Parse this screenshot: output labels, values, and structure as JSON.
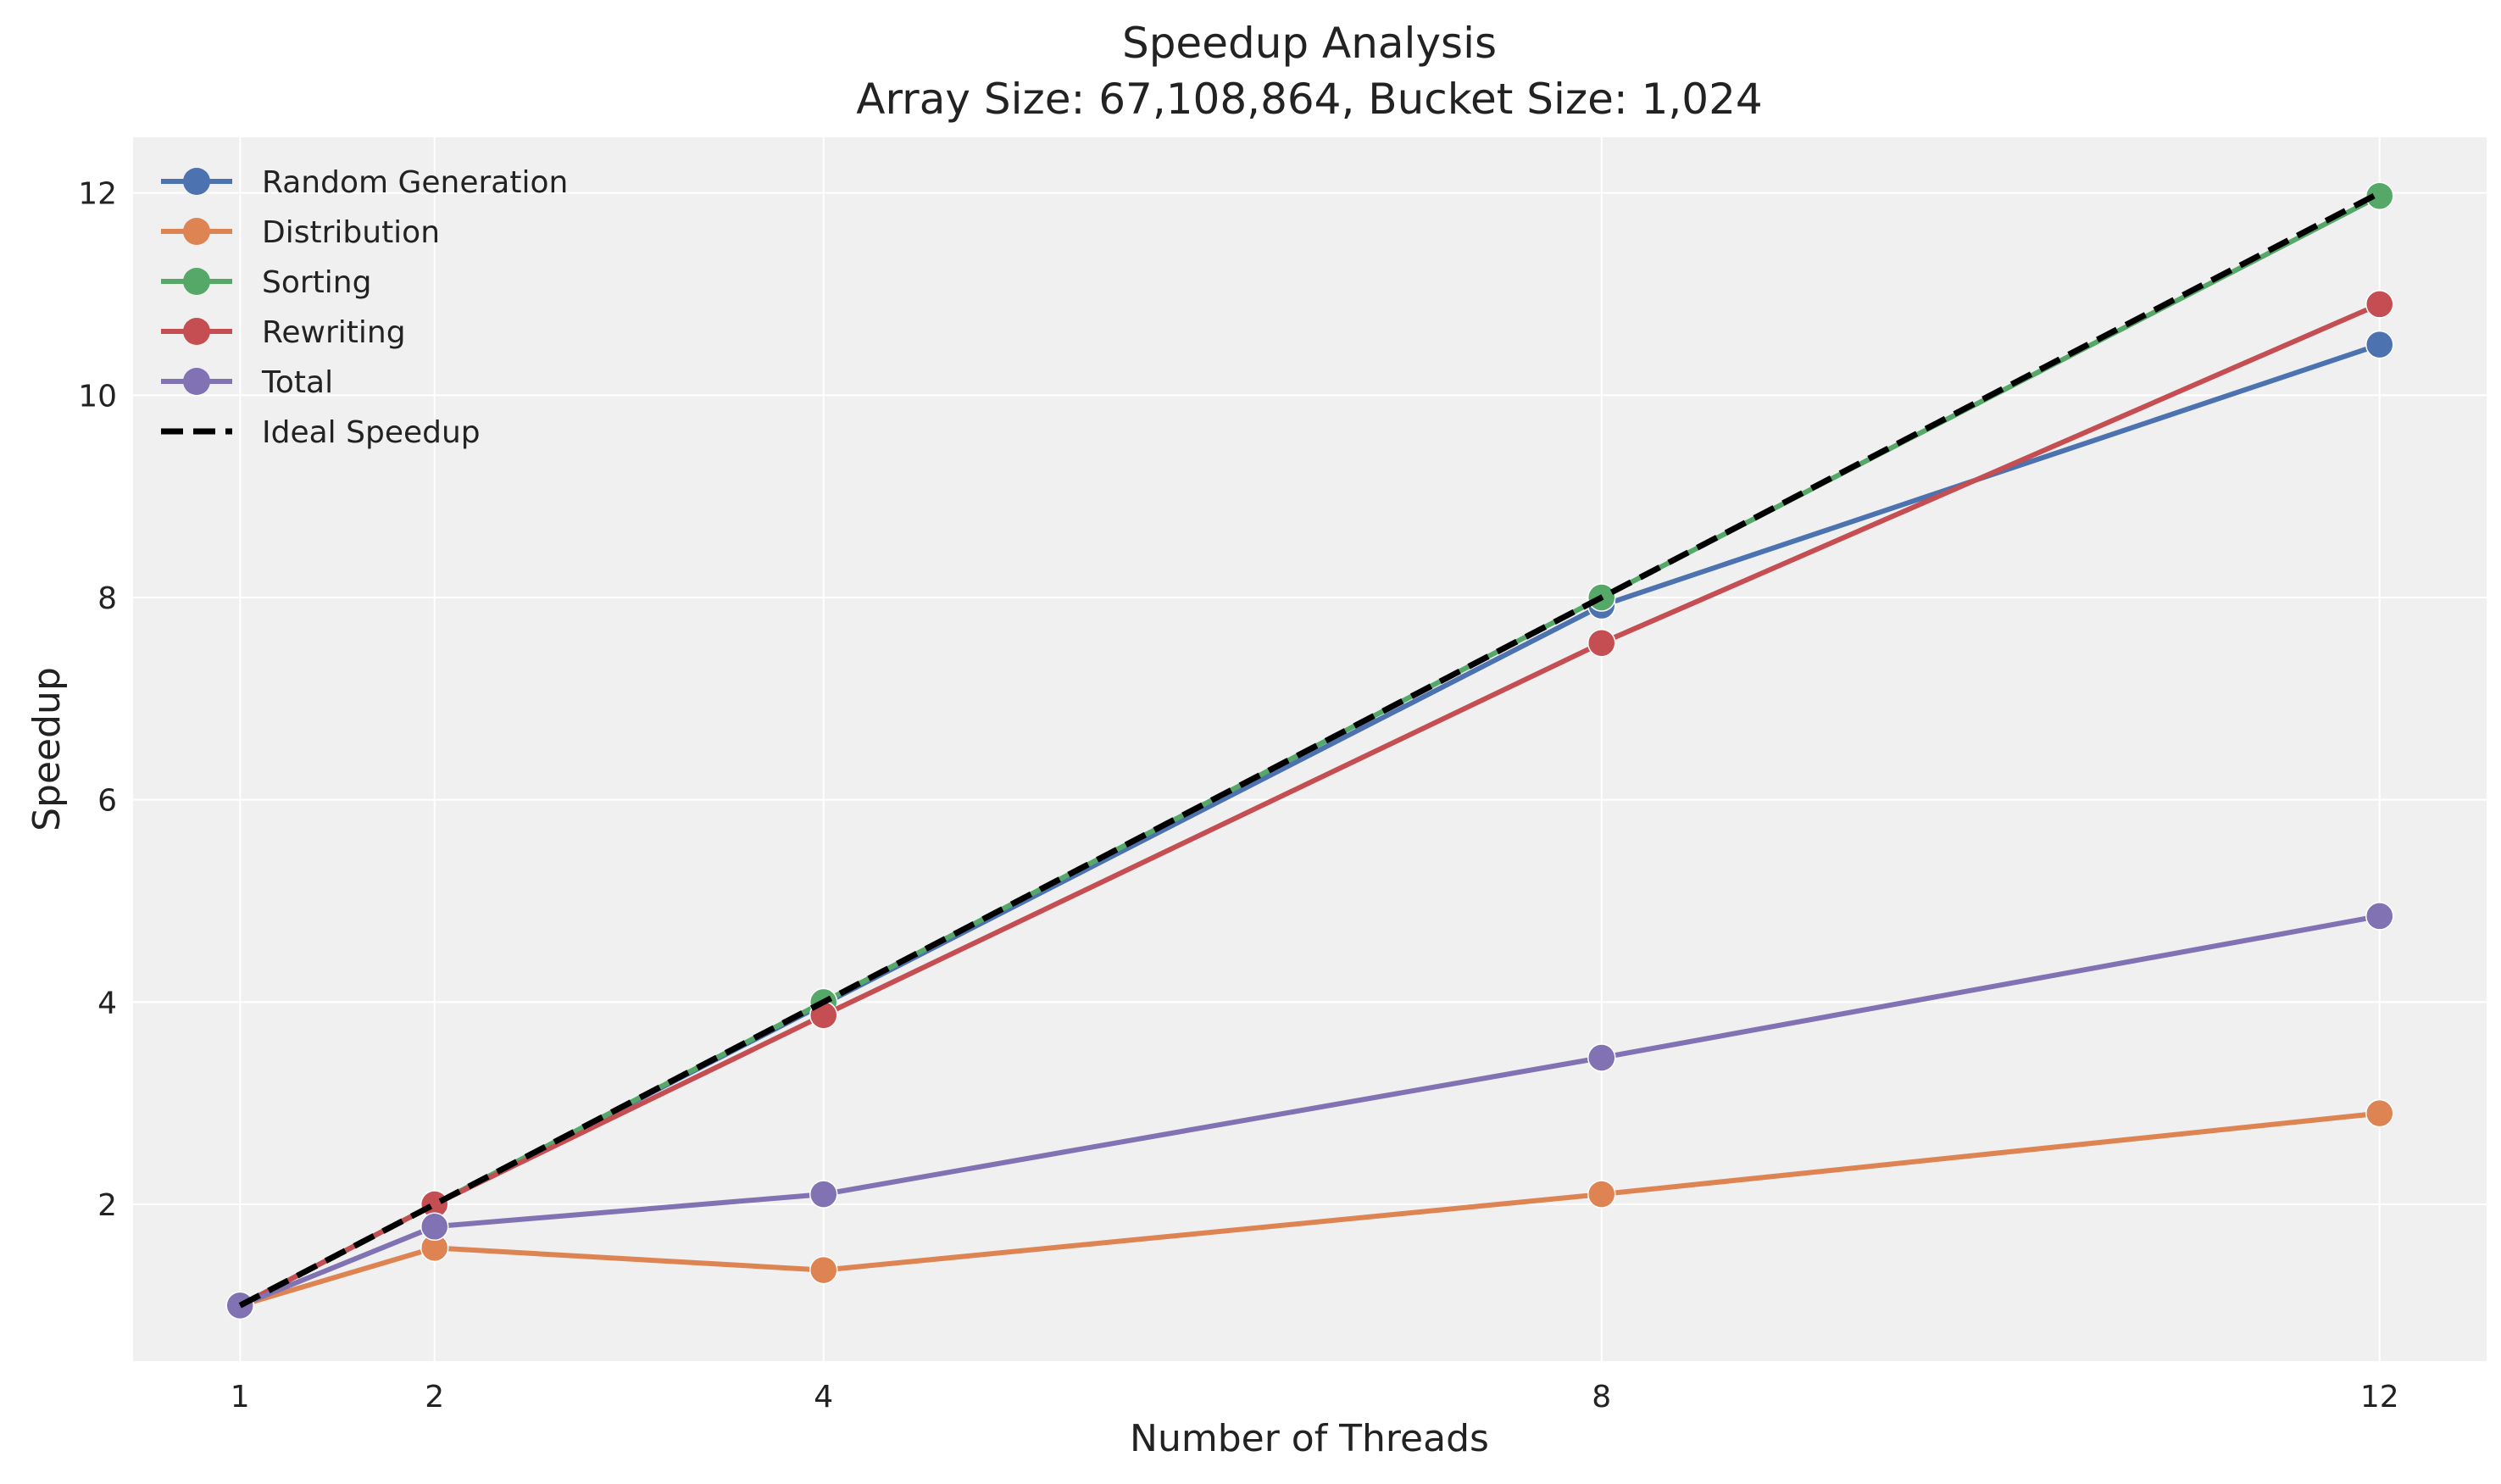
{
  "chart_data": {
    "type": "line",
    "title": "Speedup Analysis",
    "subtitle": "Array Size: 67,108,864, Bucket Size: 1,024",
    "xlabel": "Number of Threads",
    "ylabel": "Speedup",
    "x": [
      1,
      2,
      4,
      8,
      12
    ],
    "x_ticks": [
      "1",
      "2",
      "4",
      "8",
      "12"
    ],
    "y_ticks": [
      "2",
      "4",
      "6",
      "8",
      "10",
      "12"
    ],
    "xlim": [
      0.45,
      12.55
    ],
    "ylim": [
      0.45,
      12.55
    ],
    "grid": true,
    "legend_position": "top-left",
    "background": "#f0f0f0",
    "series": [
      {
        "name": "Random Generation",
        "color": "#4c72b0",
        "style": "solid",
        "marker": "circle",
        "values": [
          1.0,
          2.0,
          3.98,
          7.92,
          10.5
        ]
      },
      {
        "name": "Distribution",
        "color": "#dd8452",
        "style": "solid",
        "marker": "circle",
        "values": [
          1.0,
          1.57,
          1.35,
          2.1,
          2.9
        ]
      },
      {
        "name": "Sorting",
        "color": "#55a868",
        "style": "solid",
        "marker": "circle",
        "values": [
          1.0,
          2.0,
          4.0,
          8.0,
          11.97
        ]
      },
      {
        "name": "Rewriting",
        "color": "#c44e52",
        "style": "solid",
        "marker": "circle",
        "values": [
          1.0,
          2.0,
          3.87,
          7.55,
          10.9
        ]
      },
      {
        "name": "Total",
        "color": "#8172b3",
        "style": "solid",
        "marker": "circle",
        "values": [
          1.0,
          1.78,
          2.1,
          3.45,
          4.85
        ]
      },
      {
        "name": "Ideal Speedup",
        "color": "#000000",
        "style": "dashed",
        "marker": "none",
        "values": [
          1,
          2,
          4,
          8,
          12
        ]
      }
    ]
  }
}
